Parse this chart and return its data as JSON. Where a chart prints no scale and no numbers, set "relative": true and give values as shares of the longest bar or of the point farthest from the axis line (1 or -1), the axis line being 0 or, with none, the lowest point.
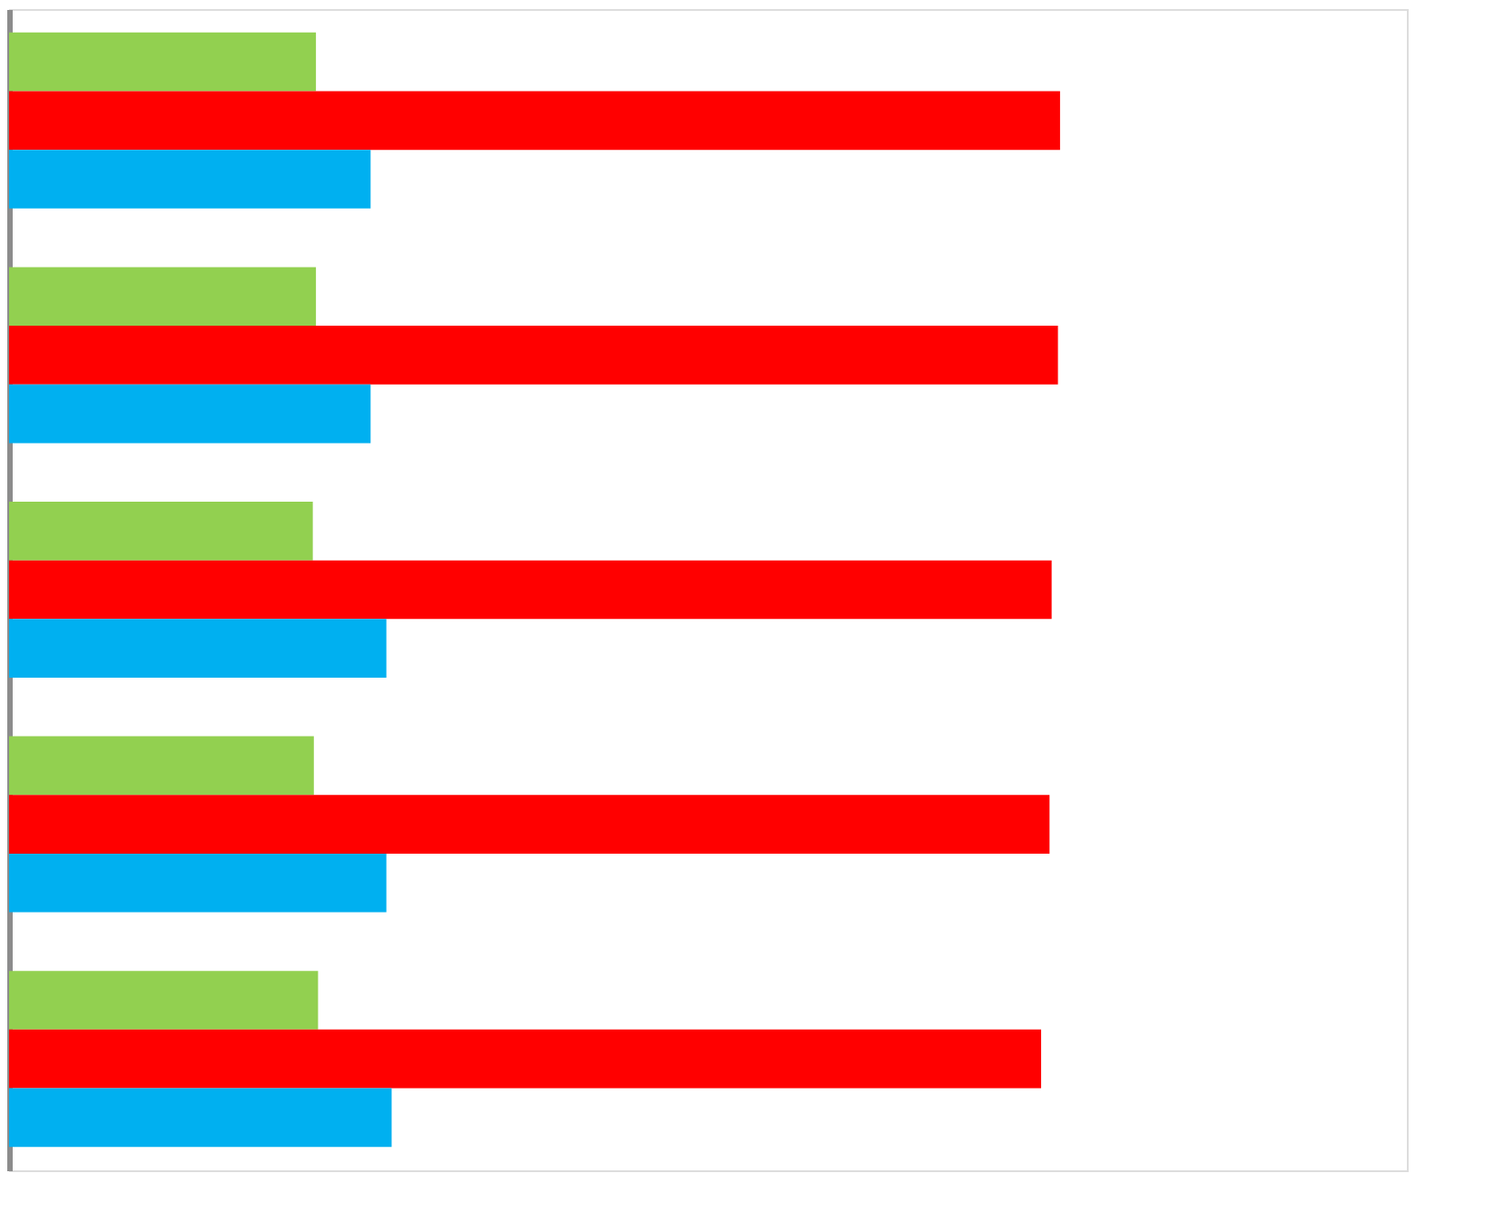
{
  "chart_data": {
    "type": "bar",
    "orientation": "horizontal",
    "relative": true,
    "legend": false,
    "tick_labels": false,
    "categories": [
      null,
      null,
      null,
      null,
      null
    ],
    "series": [
      {
        "color": "#92d050",
        "values": [
          0.292,
          0.292,
          0.289,
          0.29,
          0.294
        ]
      },
      {
        "color": "#ff0000",
        "values": [
          1,
          0.998,
          0.992,
          0.99,
          0.982
        ]
      },
      {
        "color": "#00b0f0",
        "values": [
          0.344,
          0.344,
          0.359,
          0.359,
          0.364
        ]
      }
    ]
  }
}
